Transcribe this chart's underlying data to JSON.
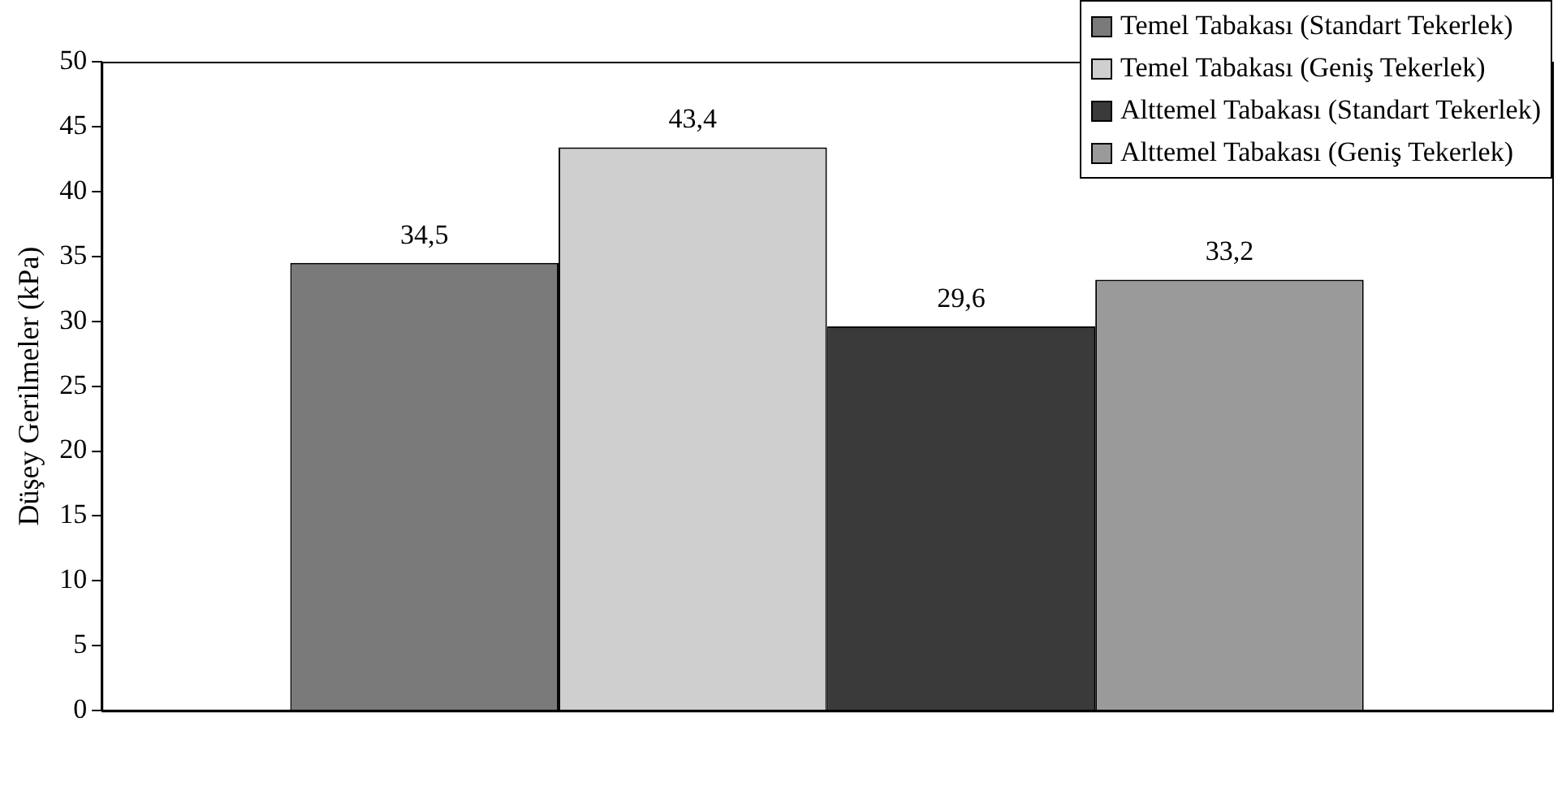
{
  "chart_data": {
    "type": "bar",
    "ylabel": "Düşey Gerilmeler (kPa)",
    "categories": [
      null
    ],
    "series": [
      {
        "name": "Temel Tabakası (Standart Tekerlek)",
        "color": "#7a7a7a",
        "values": [
          34.5
        ],
        "value_labels": [
          "34,5"
        ]
      },
      {
        "name": "Temel Tabakası (Geniş Tekerlek)",
        "color": "#cfcfcf",
        "values": [
          43.4
        ],
        "value_labels": [
          "43,4"
        ]
      },
      {
        "name": "Alttemel Tabakası (Standart Tekerlek)",
        "color": "#3a3a3a",
        "values": [
          29.6
        ],
        "value_labels": [
          "29,6"
        ]
      },
      {
        "name": "Alttemel Tabakası (Geniş Tekerlek)",
        "color": "#9a9a9a",
        "values": [
          33.2
        ],
        "value_labels": [
          "33,2"
        ]
      }
    ],
    "ylim": [
      0,
      50
    ],
    "yticks": [
      0,
      5,
      10,
      15,
      20,
      25,
      30,
      35,
      40,
      45,
      50
    ],
    "grid": false,
    "legend": "top right"
  }
}
